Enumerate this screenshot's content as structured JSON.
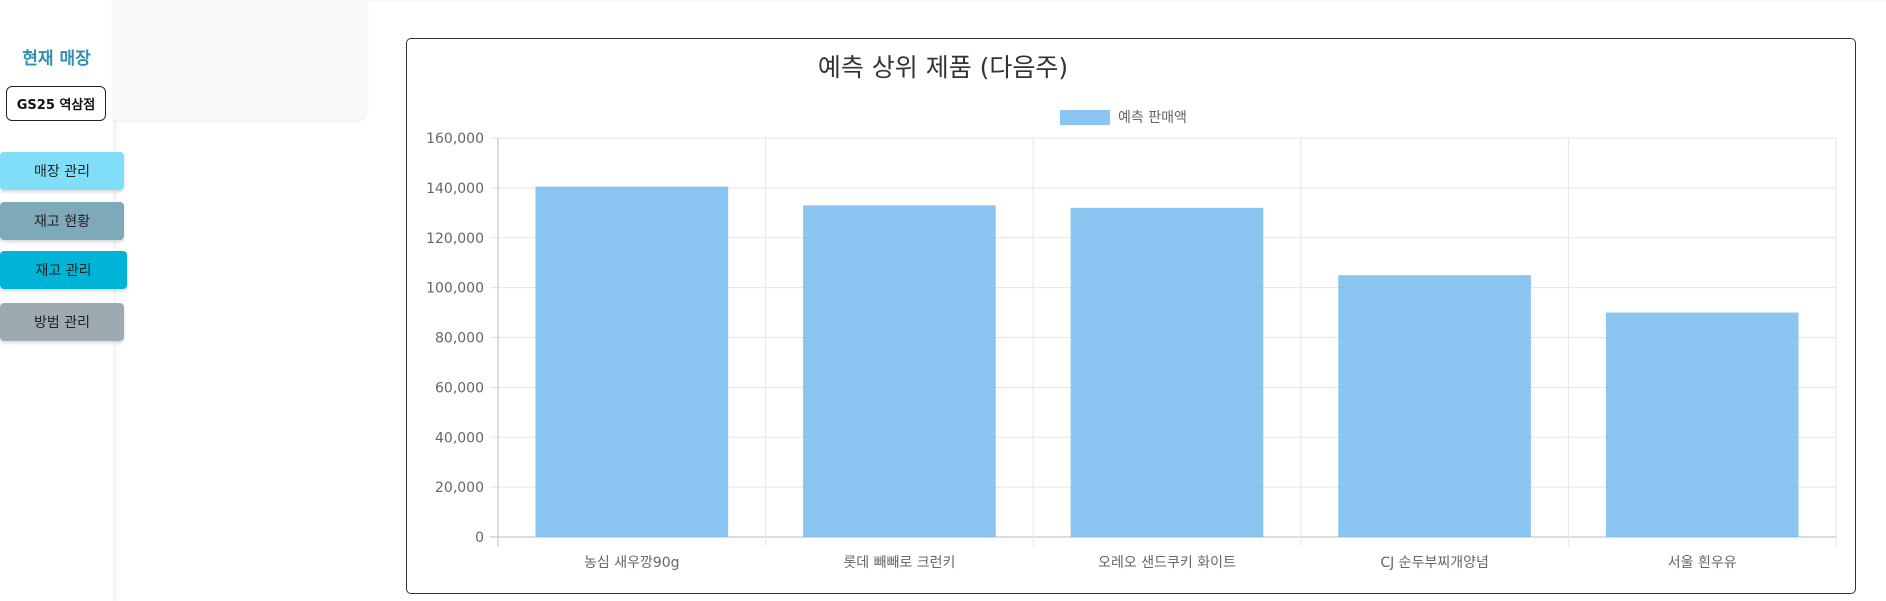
{
  "sidebar": {
    "store_heading": "현재 매장",
    "store_name": "GS25 역삼점",
    "nav": [
      {
        "label": "매장 관리"
      },
      {
        "label": "재고 현황"
      },
      {
        "label": "재고 관리"
      },
      {
        "label": "방범 관리"
      }
    ]
  },
  "chart_data": {
    "type": "bar",
    "title": "예측 상위 제품 (다음주)",
    "categories": [
      "농심 새우깡90g",
      "롯데 빼빼로 크런키",
      "오레오 샌드쿠키 화이트",
      "CJ 순두부찌개양념",
      "서울 흰우유"
    ],
    "series": [
      {
        "name": "예측 판매액",
        "values": [
          140500,
          133000,
          132000,
          105000,
          90000
        ],
        "color": "#6eb7ef"
      }
    ],
    "ylim": [
      0,
      160000
    ],
    "yticks": [
      "160,000",
      "140,000",
      "120,000",
      "100,000",
      "80,000",
      "60,000",
      "40,000",
      "20,000",
      "0"
    ],
    "grid": true,
    "legend": "top-center"
  }
}
